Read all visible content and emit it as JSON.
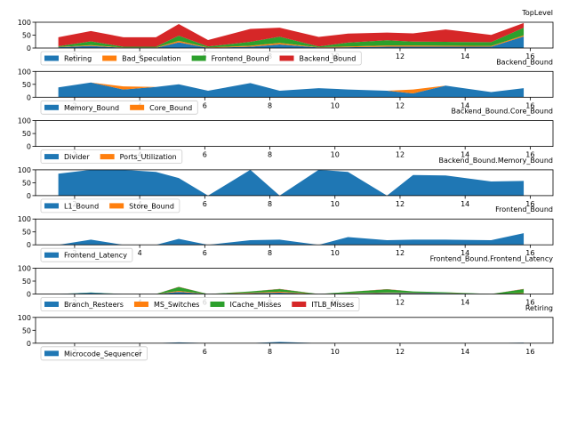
{
  "chart_data": [
    {
      "type": "area",
      "title": "TopLevel",
      "x": [
        1.5,
        2.5,
        3.5,
        4.5,
        5.2,
        6.1,
        7.4,
        8.3,
        9.5,
        10.4,
        11.6,
        12.4,
        13.4,
        14.8,
        15.8
      ],
      "xlim": [
        0.8,
        16.7
      ],
      "xticks": [
        2,
        4,
        6,
        8,
        10,
        12,
        14,
        16
      ],
      "ylim": [
        0,
        100
      ],
      "yticks": [
        0,
        50,
        100
      ],
      "legend_location": "lower-left",
      "series": [
        {
          "name": "Retiring",
          "color": "#1f77b4",
          "values": [
            3,
            8,
            1,
            1,
            22,
            1,
            5,
            14,
            2,
            3,
            5,
            5,
            5,
            5,
            45
          ]
        },
        {
          "name": "Bad_Speculation",
          "color": "#ff7f0e",
          "values": [
            1,
            3,
            1,
            1,
            6,
            1,
            4,
            6,
            1,
            3,
            5,
            5,
            4,
            3,
            4
          ]
        },
        {
          "name": "Frontend_Bound",
          "color": "#2ca02c",
          "values": [
            3,
            15,
            3,
            3,
            20,
            4,
            15,
            24,
            3,
            15,
            20,
            15,
            15,
            15,
            30
          ]
        },
        {
          "name": "Backend_Bound",
          "color": "#d62728",
          "values": [
            35,
            40,
            37,
            37,
            45,
            25,
            50,
            35,
            37,
            35,
            30,
            32,
            48,
            28,
            18
          ]
        }
      ]
    },
    {
      "type": "area",
      "title": "Backend_Bound",
      "x": [
        1.5,
        2.5,
        3.5,
        4.5,
        5.2,
        6.1,
        7.4,
        8.3,
        9.5,
        10.4,
        11.6,
        12.4,
        13.4,
        14.8,
        15.8
      ],
      "xlim": [
        0.8,
        16.7
      ],
      "xticks": [
        2,
        4,
        6,
        8,
        10,
        12,
        14,
        16
      ],
      "ylim": [
        0,
        100
      ],
      "yticks": [
        0,
        50,
        100
      ],
      "legend_location": "lower-left",
      "series": [
        {
          "name": "Memory_Bound",
          "color": "#1f77b4",
          "values": [
            38,
            57,
            30,
            40,
            50,
            25,
            55,
            25,
            35,
            30,
            25,
            15,
            45,
            20,
            35
          ]
        },
        {
          "name": "Core_Bound",
          "color": "#ff7f0e",
          "values": [
            0,
            0,
            12,
            0,
            0,
            0,
            0,
            0,
            0,
            0,
            0,
            15,
            0,
            0,
            0
          ]
        }
      ]
    },
    {
      "type": "area",
      "title": "Backend_Bound.Core_Bound",
      "x": [
        1.5,
        2.5,
        3.5,
        4.5,
        5.2,
        6.1,
        7.4,
        8.3,
        9.5,
        10.4,
        11.6,
        12.4,
        13.4,
        14.8,
        15.8
      ],
      "xlim": [
        0.8,
        16.7
      ],
      "xticks": [
        2,
        4,
        6,
        8,
        10,
        12,
        14,
        16
      ],
      "ylim": [
        0,
        100
      ],
      "yticks": [
        0,
        50,
        100
      ],
      "legend_location": "lower-left",
      "series": [
        {
          "name": "Divider",
          "color": "#1f77b4",
          "values": [
            0,
            0,
            0,
            0,
            0,
            0,
            0,
            0,
            0,
            0,
            0,
            0,
            0,
            0,
            0
          ]
        },
        {
          "name": "Ports_Utilization",
          "color": "#ff7f0e",
          "values": [
            0,
            0,
            0,
            0,
            0,
            0,
            0,
            0,
            0,
            0,
            0,
            0,
            0,
            0,
            0
          ]
        }
      ]
    },
    {
      "type": "area",
      "title": "Backend_Bound.Memory_Bound",
      "x": [
        1.5,
        2.5,
        3.5,
        4.5,
        5.2,
        6.1,
        7.4,
        8.3,
        9.5,
        10.4,
        11.6,
        12.4,
        13.4,
        14.8,
        15.8
      ],
      "xlim": [
        0.8,
        16.7
      ],
      "xticks": [
        2,
        4,
        6,
        8,
        10,
        12,
        14,
        16
      ],
      "ylim": [
        0,
        100
      ],
      "yticks": [
        0,
        50,
        100
      ],
      "legend_location": "lower-left",
      "series": [
        {
          "name": "L1_Bound",
          "color": "#1f77b4",
          "values": [
            85,
            100,
            100,
            92,
            68,
            0,
            100,
            0,
            100,
            92,
            0,
            80,
            78,
            55,
            57
          ]
        },
        {
          "name": "Store_Bound",
          "color": "#ff7f0e",
          "values": [
            0,
            0,
            0,
            0,
            0,
            0,
            0,
            0,
            0,
            0,
            0,
            0,
            0,
            0,
            0
          ]
        }
      ]
    },
    {
      "type": "area",
      "title": "Frontend_Bound",
      "x": [
        1.5,
        2.5,
        3.5,
        4.5,
        5.2,
        6.1,
        7.4,
        8.3,
        9.5,
        10.4,
        11.6,
        12.4,
        13.4,
        14.8,
        15.8
      ],
      "xlim": [
        0.8,
        16.7
      ],
      "xticks": [
        2,
        4,
        6,
        8,
        10,
        12,
        14,
        16
      ],
      "ylim": [
        0,
        100
      ],
      "yticks": [
        0,
        50,
        100
      ],
      "legend_location": "lower-left",
      "series": [
        {
          "name": "Frontend_Latency",
          "color": "#1f77b4",
          "values": [
            0,
            20,
            0,
            0,
            23,
            0,
            18,
            20,
            0,
            30,
            18,
            20,
            20,
            18,
            45
          ]
        }
      ]
    },
    {
      "type": "area",
      "title": "Frontend_Bound.Frontend_Latency",
      "x": [
        1.5,
        2.5,
        3.5,
        4.5,
        5.2,
        6.1,
        7.4,
        8.3,
        9.5,
        10.4,
        11.6,
        12.4,
        13.4,
        14.8,
        15.8
      ],
      "xlim": [
        0.8,
        16.7
      ],
      "xticks": [
        2,
        4,
        6,
        8,
        10,
        12,
        14,
        16
      ],
      "ylim": [
        0,
        100
      ],
      "yticks": [
        0,
        50,
        100
      ],
      "legend_location": "lower-left",
      "series": [
        {
          "name": "Branch_Resteers",
          "color": "#1f77b4",
          "values": [
            0,
            5,
            0,
            0,
            8,
            0,
            3,
            5,
            0,
            2,
            4,
            4,
            3,
            0,
            2
          ]
        },
        {
          "name": "MS_Switches",
          "color": "#ff7f0e",
          "values": [
            0,
            0,
            0,
            0,
            4,
            0,
            2,
            4,
            0,
            1,
            2,
            1,
            1,
            0,
            2
          ]
        },
        {
          "name": "ICache_Misses",
          "color": "#2ca02c",
          "values": [
            0,
            1,
            0,
            0,
            15,
            0,
            5,
            10,
            0,
            5,
            12,
            5,
            3,
            0,
            15
          ]
        },
        {
          "name": "ITLB_Misses",
          "color": "#d62728",
          "values": [
            0,
            0,
            0,
            0,
            1,
            0,
            0,
            1,
            0,
            0,
            1,
            0,
            0,
            0,
            1
          ]
        }
      ]
    },
    {
      "type": "area",
      "title": "Retiring",
      "x": [
        1.5,
        2.5,
        3.5,
        4.5,
        5.2,
        6.1,
        7.4,
        8.3,
        9.5,
        10.4,
        11.6,
        12.4,
        13.4,
        14.8,
        15.8
      ],
      "xlim": [
        0.8,
        16.7
      ],
      "xticks": [
        2,
        4,
        6,
        8,
        10,
        12,
        14,
        16
      ],
      "ylim": [
        0,
        100
      ],
      "yticks": [
        0,
        50,
        100
      ],
      "legend_location": "lower-left",
      "series": [
        {
          "name": "Microcode_Sequencer",
          "color": "#1f77b4",
          "values": [
            0,
            0,
            0,
            0,
            3,
            0,
            0,
            5,
            0,
            0,
            0,
            0,
            0,
            0,
            2
          ]
        }
      ]
    }
  ]
}
